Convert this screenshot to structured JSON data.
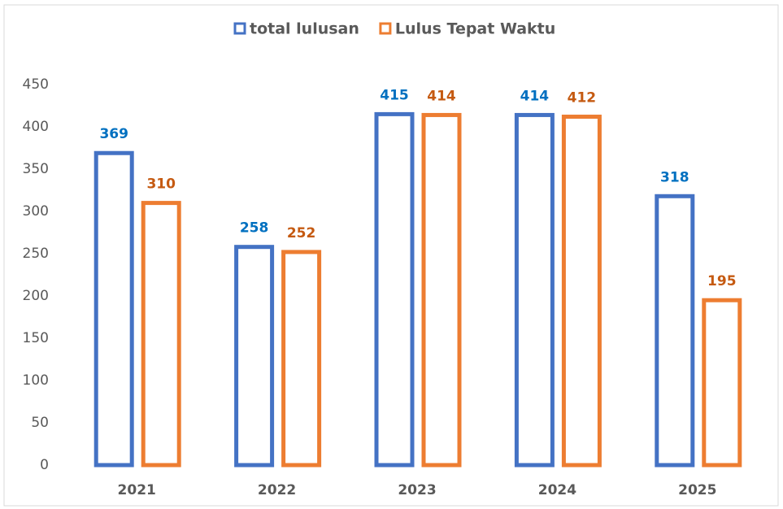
{
  "chart_data": {
    "type": "bar",
    "categories": [
      "2021",
      "2022",
      "2023",
      "2024",
      "2025"
    ],
    "series": [
      {
        "name": "total lulusan",
        "color": "#4472c4",
        "label_color": "#0070c0",
        "values": [
          369,
          258,
          415,
          414,
          318
        ]
      },
      {
        "name": "Lulus Tepat Waktu",
        "color": "#ed7d31",
        "label_color": "#c55a11",
        "values": [
          310,
          252,
          414,
          412,
          195
        ]
      }
    ],
    "ylim": [
      0,
      450
    ],
    "yticks": [
      0,
      50,
      100,
      150,
      200,
      250,
      300,
      350,
      400,
      450
    ],
    "grid": false,
    "legend": "top"
  }
}
